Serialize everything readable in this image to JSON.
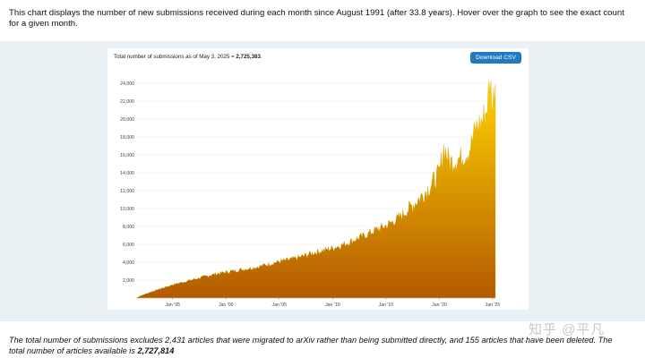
{
  "intro_text": "This chart displays the number of new submissions received during each month since August 1991 (after 33.8 years). Hover over the graph to see the exact count for a given month.",
  "header": {
    "total_prefix": "Total number of submissions as of May 3, 2025 = ",
    "total_value": "2,725,383",
    "total_suffix": ".",
    "download_label": "Download CSV"
  },
  "footer": {
    "text_before": "The total number of submissions excludes 2,431 articles that were migrated to arXiv rather than being submitted directly, and 155 articles that have been deleted. The total number of articles available is ",
    "total_available": "2,727,814"
  },
  "watermark": "知乎 @平凡",
  "colors": {
    "area_top": "#ffd400",
    "area_bottom": "#b35a00",
    "accent_button": "#1f7ac2",
    "panel_bg": "#eaf1f5"
  },
  "chart_data": {
    "type": "area",
    "title": "",
    "xlabel": "",
    "ylabel": "",
    "x_start": "1991-08",
    "x_end": "2025-04",
    "x_ticks": [
      "Jan '95",
      "Jan '00",
      "Jan '05",
      "Jan '10",
      "Jan '15",
      "Jan '20",
      "Jan '25"
    ],
    "y_ticks": [
      2000,
      4000,
      6000,
      8000,
      10000,
      12000,
      14000,
      16000,
      18000,
      20000,
      22000,
      24000
    ],
    "y_tick_labels": [
      "2,000",
      "4,000",
      "6,000",
      "8,000",
      "10,000",
      "12,000",
      "14,000",
      "16,000",
      "18,000",
      "20,000",
      "22,000",
      "24,000"
    ],
    "ylim": [
      0,
      25000
    ],
    "grid": true,
    "series": [
      {
        "points": [
          [
            "1991-08",
            0
          ],
          [
            "1992-01",
            250
          ],
          [
            "1993-01",
            700
          ],
          [
            "1994-01",
            1100
          ],
          [
            "1995-01",
            1500
          ],
          [
            "1996-01",
            1800
          ],
          [
            "1997-01",
            2100
          ],
          [
            "1998-01",
            2400
          ],
          [
            "1999-01",
            2700
          ],
          [
            "2000-01",
            2900
          ],
          [
            "2001-01",
            3100
          ],
          [
            "2002-01",
            3300
          ],
          [
            "2003-01",
            3500
          ],
          [
            "2004-01",
            3800
          ],
          [
            "2005-01",
            4100
          ],
          [
            "2006-01",
            4300
          ],
          [
            "2007-01",
            4600
          ],
          [
            "2008-01",
            5000
          ],
          [
            "2009-01",
            5300
          ],
          [
            "2010-01",
            5600
          ],
          [
            "2011-01",
            6000
          ],
          [
            "2012-01",
            6500
          ],
          [
            "2013-01",
            7000
          ],
          [
            "2014-01",
            7600
          ],
          [
            "2015-01",
            8100
          ],
          [
            "2016-01",
            8800
          ],
          [
            "2017-01",
            9800
          ],
          [
            "2018-01",
            11000
          ],
          [
            "2019-01",
            12300
          ],
          [
            "2020-01",
            14000
          ],
          [
            "2020-06",
            16800
          ],
          [
            "2021-01",
            15200
          ],
          [
            "2022-01",
            15700
          ],
          [
            "2022-10",
            16500
          ],
          [
            "2023-01",
            17300
          ],
          [
            "2023-06",
            19000
          ],
          [
            "2024-01",
            19800
          ],
          [
            "2024-06",
            21000
          ],
          [
            "2024-10",
            24200
          ],
          [
            "2025-01",
            21500
          ],
          [
            "2025-04",
            24300
          ]
        ]
      }
    ]
  }
}
